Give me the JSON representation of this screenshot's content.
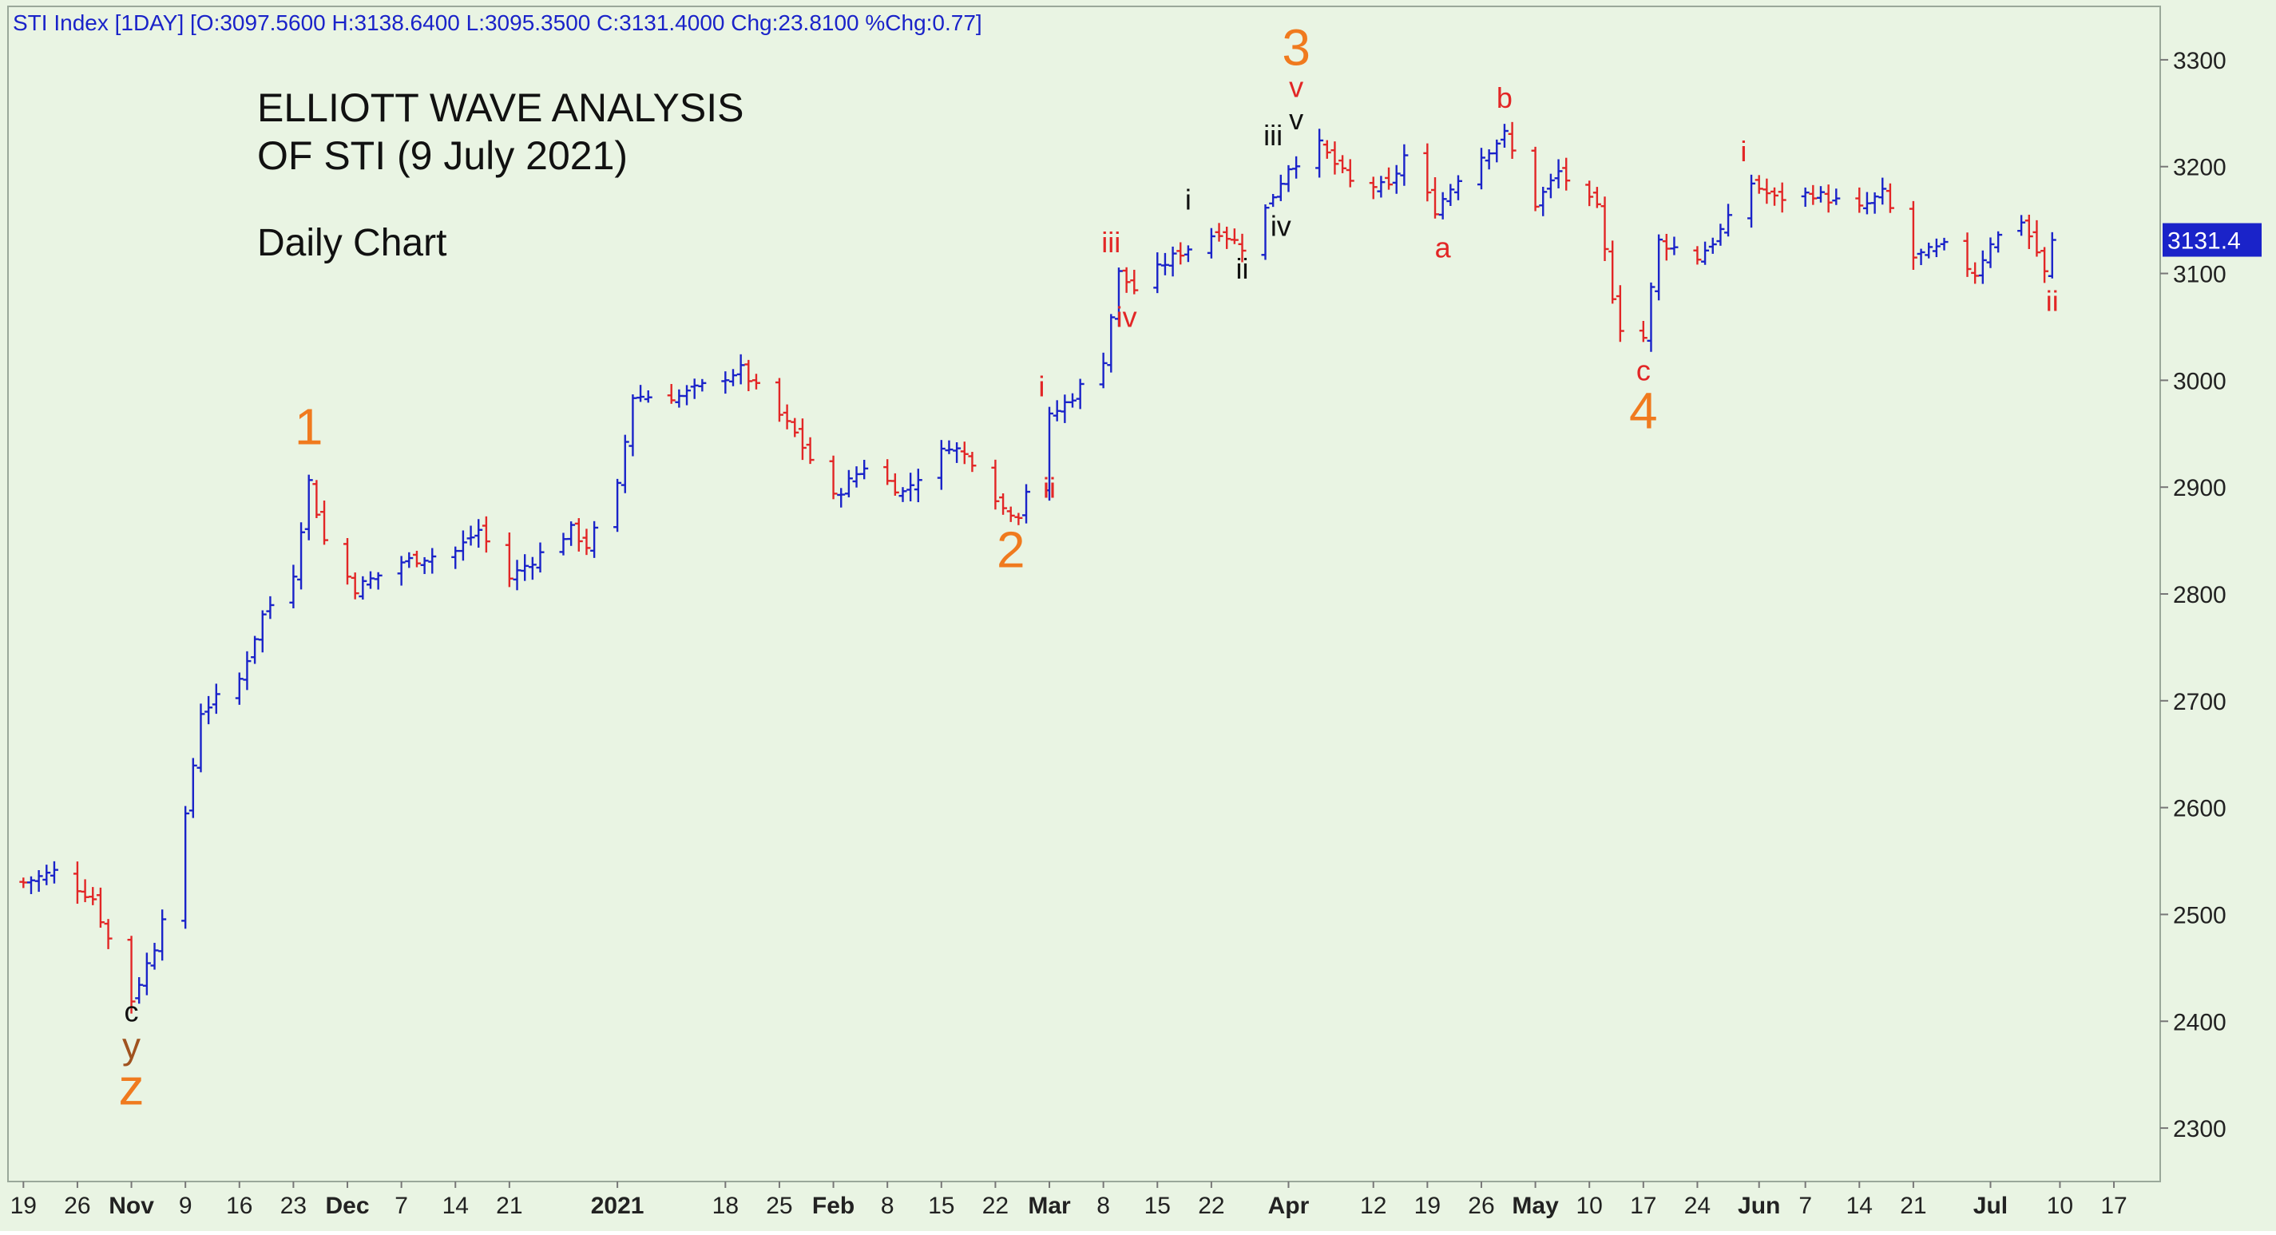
{
  "header": {
    "text": "STI Index [1DAY] [O:3097.5600 H:3138.6400 L:3095.3500 C:3131.4000 Chg:23.8100 %Chg:0.77]"
  },
  "annotations_text": {
    "title_line1": "ELLIOTT WAVE ANALYSIS",
    "title_line2": "OF STI (9 July 2021)",
    "subtitle": "Daily Chart"
  },
  "last_price_label": "3131.4",
  "colors": {
    "background": "#e9f4e3",
    "up_bar": "#1a23c9",
    "down_bar": "#e22626",
    "wave_orange": "#f07a1e",
    "wave_red": "#e22626",
    "wave_black": "#111111",
    "wave_brown": "#a0521f",
    "header_text": "#1a23c9",
    "price_box": "#1a23c9"
  },
  "chart_data": {
    "type": "ohlc",
    "title": "STI Index [1DAY]",
    "y_axis": {
      "ticks": [
        2300,
        2400,
        2500,
        2600,
        2700,
        2800,
        2900,
        3000,
        3100,
        3200,
        3300
      ],
      "range": [
        2250,
        3350
      ],
      "side": "right"
    },
    "x_axis": {
      "range": [
        "2020-10-17",
        "2021-07-23"
      ],
      "ticks": [
        {
          "date": "2020-10-19",
          "label": "19",
          "bold": false
        },
        {
          "date": "2020-10-26",
          "label": "26",
          "bold": false
        },
        {
          "date": "2020-11-02",
          "label": "Nov",
          "bold": true
        },
        {
          "date": "2020-11-09",
          "label": "9",
          "bold": false
        },
        {
          "date": "2020-11-16",
          "label": "16",
          "bold": false
        },
        {
          "date": "2020-11-23",
          "label": "23",
          "bold": false
        },
        {
          "date": "2020-11-30",
          "label": "Dec",
          "bold": true
        },
        {
          "date": "2020-12-07",
          "label": "7",
          "bold": false
        },
        {
          "date": "2020-12-14",
          "label": "14",
          "bold": false
        },
        {
          "date": "2020-12-21",
          "label": "21",
          "bold": false
        },
        {
          "date": "2021-01-04",
          "label": "2021",
          "bold": true
        },
        {
          "date": "2021-01-18",
          "label": "18",
          "bold": false
        },
        {
          "date": "2021-01-25",
          "label": "25",
          "bold": false
        },
        {
          "date": "2021-02-01",
          "label": "Feb",
          "bold": true
        },
        {
          "date": "2021-02-08",
          "label": "8",
          "bold": false
        },
        {
          "date": "2021-02-15",
          "label": "15",
          "bold": false
        },
        {
          "date": "2021-02-22",
          "label": "22",
          "bold": false
        },
        {
          "date": "2021-03-01",
          "label": "Mar",
          "bold": true
        },
        {
          "date": "2021-03-08",
          "label": "8",
          "bold": false
        },
        {
          "date": "2021-03-15",
          "label": "15",
          "bold": false
        },
        {
          "date": "2021-03-22",
          "label": "22",
          "bold": false
        },
        {
          "date": "2021-04-01",
          "label": "Apr",
          "bold": true
        },
        {
          "date": "2021-04-12",
          "label": "12",
          "bold": false
        },
        {
          "date": "2021-04-19",
          "label": "19",
          "bold": false
        },
        {
          "date": "2021-04-26",
          "label": "26",
          "bold": false
        },
        {
          "date": "2021-05-03",
          "label": "May",
          "bold": true
        },
        {
          "date": "2021-05-10",
          "label": "10",
          "bold": false
        },
        {
          "date": "2021-05-17",
          "label": "17",
          "bold": false
        },
        {
          "date": "2021-05-24",
          "label": "24",
          "bold": false
        },
        {
          "date": "2021-06-01",
          "label": "Jun",
          "bold": true
        },
        {
          "date": "2021-06-07",
          "label": "7",
          "bold": false
        },
        {
          "date": "2021-06-14",
          "label": "14",
          "bold": false
        },
        {
          "date": "2021-06-21",
          "label": "21",
          "bold": false
        },
        {
          "date": "2021-07-01",
          "label": "Jul",
          "bold": true
        },
        {
          "date": "2021-07-10",
          "label": "10",
          "bold": false
        },
        {
          "date": "2021-07-17",
          "label": "17",
          "bold": false
        }
      ]
    },
    "waypoints": [
      [
        "2020-10-19",
        2530
      ],
      [
        "2020-10-23",
        2540
      ],
      [
        "2020-10-28",
        2515
      ],
      [
        "2020-11-02",
        2420
      ],
      [
        "2020-11-05",
        2470
      ],
      [
        "2020-11-09",
        2590
      ],
      [
        "2020-11-11",
        2690
      ],
      [
        "2020-11-16",
        2720
      ],
      [
        "2020-11-19",
        2780
      ],
      [
        "2020-11-23",
        2820
      ],
      [
        "2020-11-25",
        2905
      ],
      [
        "2020-11-27",
        2850
      ],
      [
        "2020-12-01",
        2805
      ],
      [
        "2020-12-07",
        2830
      ],
      [
        "2020-12-14",
        2840
      ],
      [
        "2020-12-17",
        2860
      ],
      [
        "2020-12-21",
        2815
      ],
      [
        "2020-12-29",
        2860
      ],
      [
        "2020-12-31",
        2845
      ],
      [
        "2021-01-04",
        2900
      ],
      [
        "2021-01-06",
        2985
      ],
      [
        "2021-01-12",
        2985
      ],
      [
        "2021-01-20",
        3010
      ],
      [
        "2021-01-27",
        2950
      ],
      [
        "2021-02-01",
        2890
      ],
      [
        "2021-02-05",
        2920
      ],
      [
        "2021-02-10",
        2895
      ],
      [
        "2021-02-16",
        2940
      ],
      [
        "2021-02-19",
        2925
      ],
      [
        "2021-02-23",
        2880
      ],
      [
        "2021-02-25",
        2875
      ],
      [
        "2021-03-01",
        2965
      ],
      [
        "2021-03-04",
        2985
      ],
      [
        "2021-03-08",
        3020
      ],
      [
        "2021-03-10",
        3100
      ],
      [
        "2021-03-12",
        3085
      ],
      [
        "2021-03-16",
        3110
      ],
      [
        "2021-03-18",
        3120
      ],
      [
        "2021-03-23",
        3140
      ],
      [
        "2021-03-26",
        3125
      ],
      [
        "2021-03-29",
        3160
      ],
      [
        "2021-04-01",
        3200
      ],
      [
        "2021-04-05",
        3220
      ],
      [
        "2021-04-09",
        3185
      ],
      [
        "2021-04-14",
        3180
      ],
      [
        "2021-04-16",
        3210
      ],
      [
        "2021-04-20",
        3160
      ],
      [
        "2021-04-23",
        3190
      ],
      [
        "2021-04-26",
        3210
      ],
      [
        "2021-04-29",
        3230
      ],
      [
        "2021-05-03",
        3165
      ],
      [
        "2021-05-06",
        3195
      ],
      [
        "2021-05-11",
        3160
      ],
      [
        "2021-05-13",
        3080
      ],
      [
        "2021-05-14",
        3050
      ],
      [
        "2021-05-17",
        3040
      ],
      [
        "2021-05-19",
        3130
      ],
      [
        "2021-05-24",
        3115
      ],
      [
        "2021-05-26",
        3130
      ],
      [
        "2021-05-28",
        3150
      ],
      [
        "2021-05-31",
        3185
      ],
      [
        "2021-06-03",
        3170
      ],
      [
        "2021-06-08",
        3175
      ],
      [
        "2021-06-14",
        3160
      ],
      [
        "2021-06-17",
        3175
      ],
      [
        "2021-06-21",
        3115
      ],
      [
        "2021-06-25",
        3125
      ],
      [
        "2021-06-29",
        3100
      ],
      [
        "2021-07-01",
        3130
      ],
      [
        "2021-07-05",
        3150
      ],
      [
        "2021-07-07",
        3120
      ],
      [
        "2021-07-08",
        3100
      ],
      [
        "2021-07-09",
        3131.4
      ]
    ],
    "last_bar": {
      "open": 3097.56,
      "high": 3138.64,
      "low": 3095.35,
      "close": 3131.4,
      "change": 23.81,
      "pct_change": 0.77
    },
    "wave_labels": [
      {
        "text": "c",
        "date": "2020-11-02",
        "price": 2400,
        "color": "wave_black",
        "size": "small"
      },
      {
        "text": "y",
        "date": "2020-11-02",
        "price": 2365,
        "color": "wave_brown",
        "size": "medium"
      },
      {
        "text": "z",
        "date": "2020-11-02",
        "price": 2322,
        "color": "wave_orange",
        "size": "large"
      },
      {
        "text": "1",
        "date": "2020-11-25",
        "price": 2940,
        "color": "wave_orange",
        "size": "large"
      },
      {
        "text": "2",
        "date": "2021-02-24",
        "price": 2825,
        "color": "wave_orange",
        "size": "large"
      },
      {
        "text": "i",
        "date": "2021-02-28",
        "price": 2985,
        "color": "wave_red",
        "size": "small"
      },
      {
        "text": "ii",
        "date": "2021-03-01",
        "price": 2890,
        "color": "wave_red",
        "size": "small"
      },
      {
        "text": "iii",
        "date": "2021-03-09",
        "price": 3120,
        "color": "wave_red",
        "size": "small"
      },
      {
        "text": "iv",
        "date": "2021-03-11",
        "price": 3050,
        "color": "wave_red",
        "size": "small"
      },
      {
        "text": "i",
        "date": "2021-03-19",
        "price": 3160,
        "color": "wave_black",
        "size": "small"
      },
      {
        "text": "ii",
        "date": "2021-03-26",
        "price": 3095,
        "color": "wave_black",
        "size": "small"
      },
      {
        "text": "iii",
        "date": "2021-03-30",
        "price": 3220,
        "color": "wave_black",
        "size": "small"
      },
      {
        "text": "iv",
        "date": "2021-03-31",
        "price": 3135,
        "color": "wave_black",
        "size": "small"
      },
      {
        "text": "v",
        "date": "2021-04-02",
        "price": 3235,
        "color": "wave_black",
        "size": "small"
      },
      {
        "text": "v",
        "date": "2021-04-02",
        "price": 3265,
        "color": "wave_red",
        "size": "small"
      },
      {
        "text": "3",
        "date": "2021-04-02",
        "price": 3295,
        "color": "wave_orange",
        "size": "large"
      },
      {
        "text": "a",
        "date": "2021-04-21",
        "price": 3115,
        "color": "wave_red",
        "size": "small"
      },
      {
        "text": "b",
        "date": "2021-04-29",
        "price": 3255,
        "color": "wave_red",
        "size": "small"
      },
      {
        "text": "c",
        "date": "2021-05-17",
        "price": 3000,
        "color": "wave_red",
        "size": "small"
      },
      {
        "text": "4",
        "date": "2021-05-17",
        "price": 2955,
        "color": "wave_orange",
        "size": "large"
      },
      {
        "text": "i",
        "date": "2021-05-30",
        "price": 3205,
        "color": "wave_red",
        "size": "small"
      },
      {
        "text": "ii",
        "date": "2021-07-09",
        "price": 3065,
        "color": "wave_red",
        "size": "small"
      }
    ]
  }
}
